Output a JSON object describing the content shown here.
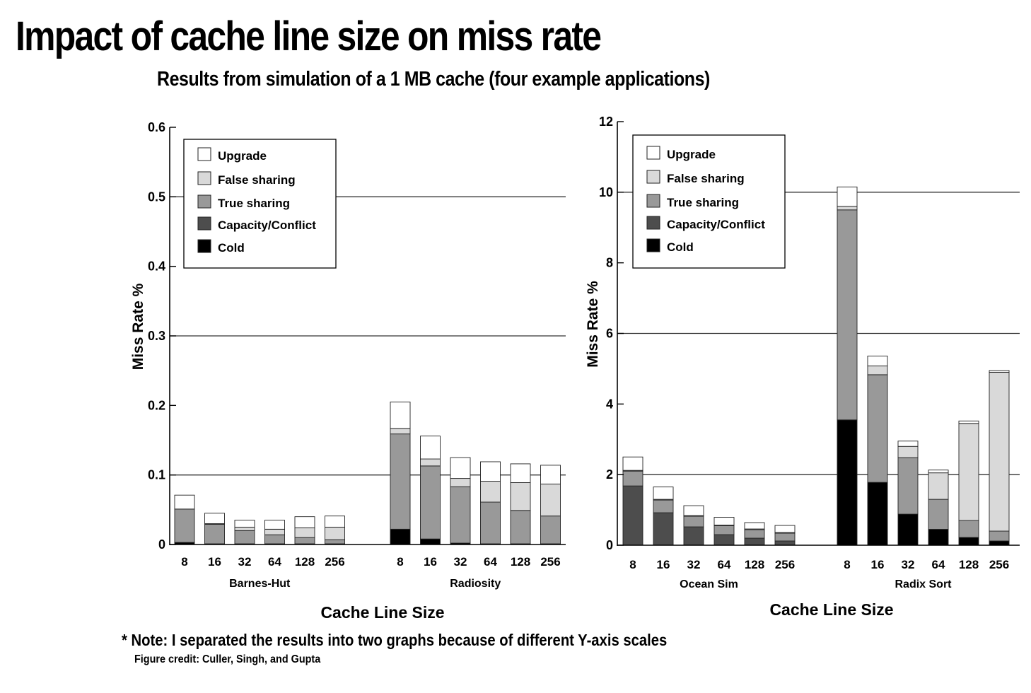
{
  "title": "Impact of cache line size on miss rate",
  "subtitle": "Results from simulation of a 1 MB cache (four example applications)",
  "note": "* Note: I separated the results into two graphs because of different Y-axis scales",
  "credit": "Figure credit: Culler, Singh, and Gupta",
  "colors": {
    "Upgrade": "#ffffff",
    "False sharing": "#d9d9d9",
    "True sharing": "#999999",
    "Capacity/Conflict": "#4d4d4d",
    "Cold": "#000000"
  },
  "chart_data": [
    {
      "type": "bar",
      "stacked": true,
      "xlabel": "Cache Line Size",
      "ylabel": "Miss Rate %",
      "ylim": [
        0,
        0.6
      ],
      "yticks": [
        0,
        0.1,
        0.2,
        0.3,
        0.4,
        0.5,
        0.6
      ],
      "ytick_labels": [
        "0",
        "0.1",
        "0.2",
        "0.3",
        "0.4",
        "0.5",
        "0.6"
      ],
      "gridlines": [
        0.1,
        0.3,
        0.5
      ],
      "legend": "top-left",
      "stack_order": [
        "Cold",
        "Capacity/Conflict",
        "True sharing",
        "False sharing",
        "Upgrade"
      ],
      "legend_order": [
        "Upgrade",
        "False sharing",
        "True sharing",
        "Capacity/Conflict",
        "Cold"
      ],
      "groups": [
        {
          "name": "Barnes-Hut",
          "categories": [
            "8",
            "16",
            "32",
            "64",
            "128",
            "256"
          ],
          "values": {
            "Cold": [
              0.003,
              0.001,
              0.001,
              0.001,
              0.001,
              0.001
            ],
            "Capacity/Conflict": [
              0,
              0,
              0,
              0,
              0,
              0
            ],
            "True sharing": [
              0.048,
              0.028,
              0.019,
              0.013,
              0.009,
              0.006
            ],
            "False sharing": [
              0,
              0.001,
              0.005,
              0.008,
              0.014,
              0.018
            ],
            "Upgrade": [
              0.02,
              0.015,
              0.01,
              0.013,
              0.016,
              0.016
            ]
          }
        },
        {
          "name": "Radiosity",
          "categories": [
            "8",
            "16",
            "32",
            "64",
            "128",
            "256"
          ],
          "values": {
            "Cold": [
              0.022,
              0.008,
              0.002,
              0.001,
              0.001,
              0.001
            ],
            "Capacity/Conflict": [
              0,
              0,
              0,
              0,
              0,
              0
            ],
            "True sharing": [
              0.137,
              0.105,
              0.081,
              0.06,
              0.048,
              0.04
            ],
            "False sharing": [
              0.008,
              0.01,
              0.012,
              0.03,
              0.04,
              0.046
            ],
            "Upgrade": [
              0.038,
              0.033,
              0.03,
              0.028,
              0.027,
              0.027
            ]
          }
        }
      ]
    },
    {
      "type": "bar",
      "stacked": true,
      "xlabel": "Cache Line Size",
      "ylabel": "Miss Rate %",
      "ylim": [
        0,
        12
      ],
      "yticks": [
        0,
        2,
        4,
        6,
        8,
        10,
        12
      ],
      "ytick_labels": [
        "0",
        "2",
        "4",
        "6",
        "8",
        "10",
        "12"
      ],
      "gridlines": [
        2,
        6,
        10
      ],
      "legend": "top-left",
      "stack_order": [
        "Cold",
        "Capacity/Conflict",
        "True sharing",
        "False sharing",
        "Upgrade"
      ],
      "legend_order": [
        "Upgrade",
        "False sharing",
        "True sharing",
        "Capacity/Conflict",
        "Cold"
      ],
      "groups": [
        {
          "name": "Ocean Sim",
          "categories": [
            "8",
            "16",
            "32",
            "64",
            "128",
            "256"
          ],
          "values": {
            "Cold": [
              0,
              0,
              0,
              0,
              0,
              0
            ],
            "Capacity/Conflict": [
              1.68,
              0.92,
              0.52,
              0.3,
              0.2,
              0.12
            ],
            "True sharing": [
              0.42,
              0.36,
              0.3,
              0.25,
              0.24,
              0.22
            ],
            "False sharing": [
              0.02,
              0.02,
              0.02,
              0.02,
              0.02,
              0.02
            ],
            "Upgrade": [
              0.38,
              0.35,
              0.28,
              0.22,
              0.18,
              0.2
            ]
          }
        },
        {
          "name": "Radix Sort",
          "categories": [
            "8",
            "16",
            "32",
            "64",
            "128",
            "256"
          ],
          "values": {
            "Cold": [
              3.55,
              1.78,
              0.88,
              0.45,
              0.22,
              0.12
            ],
            "Capacity/Conflict": [
              0,
              0,
              0,
              0,
              0,
              0
            ],
            "True sharing": [
              5.95,
              3.05,
              1.6,
              0.85,
              0.48,
              0.28
            ],
            "False sharing": [
              0.1,
              0.25,
              0.32,
              0.75,
              2.75,
              4.5
            ],
            "Upgrade": [
              0.55,
              0.28,
              0.15,
              0.08,
              0.07,
              0.05
            ]
          }
        }
      ]
    }
  ]
}
